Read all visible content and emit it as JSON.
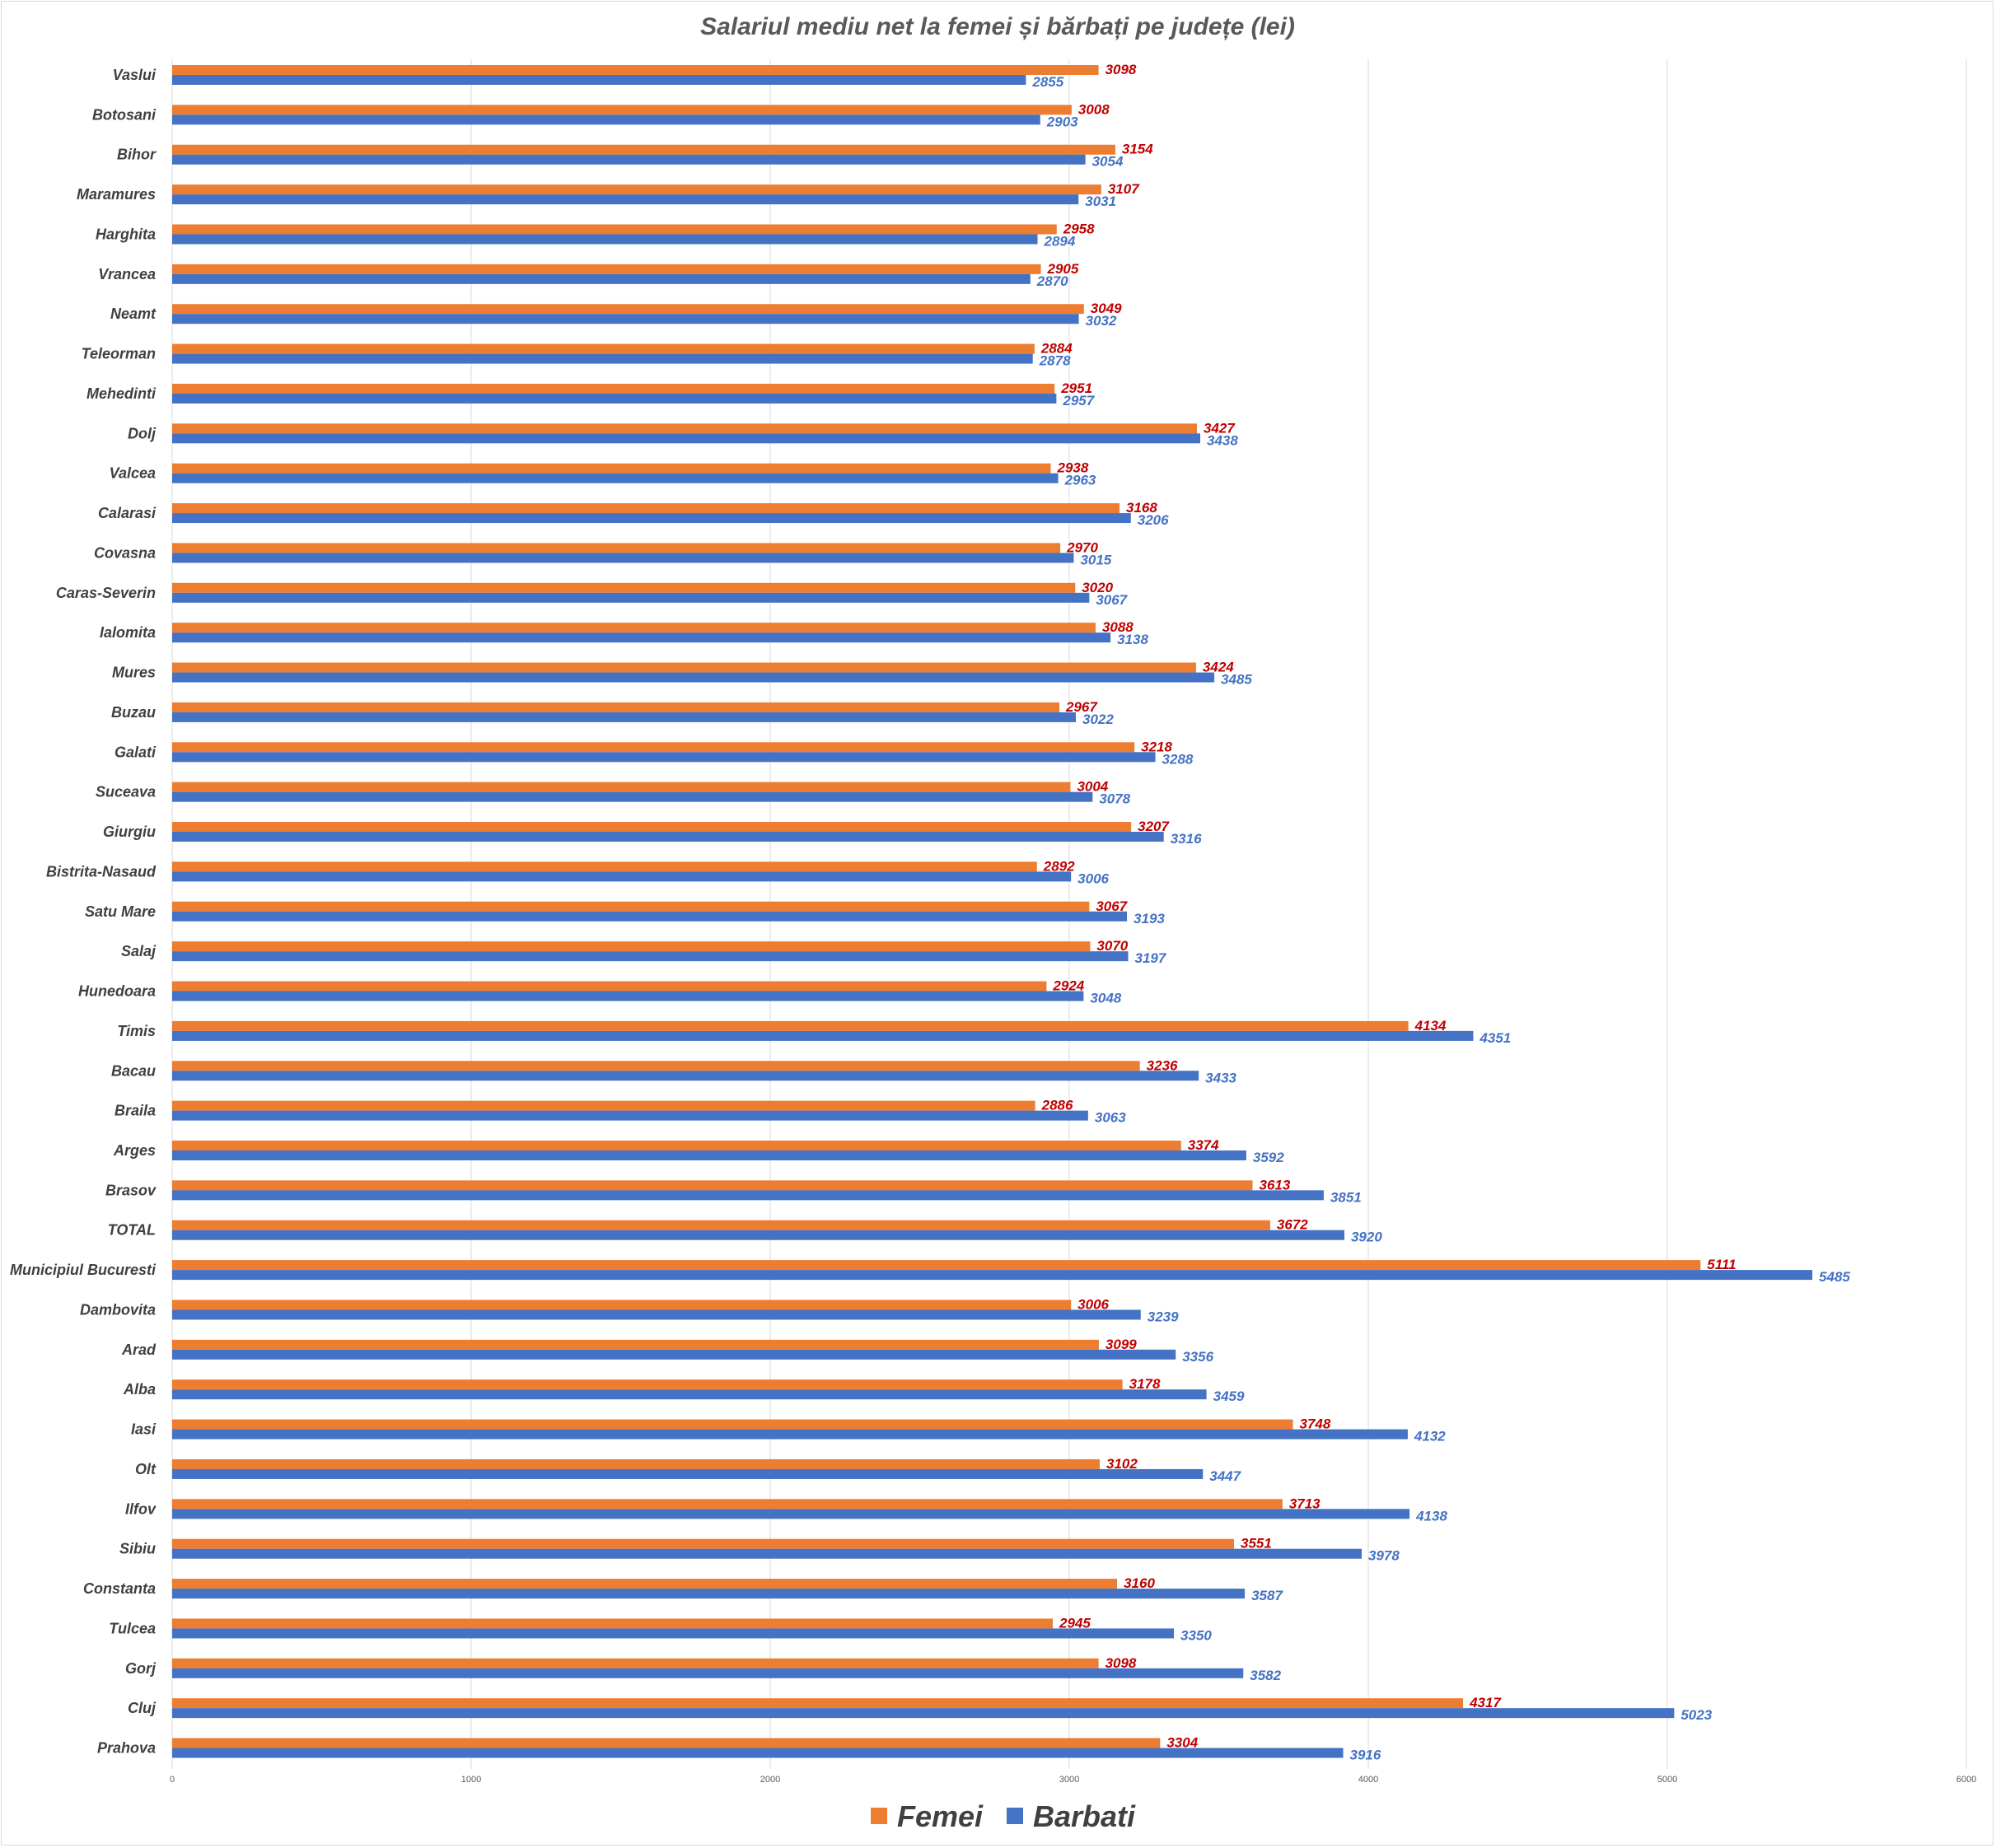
{
  "chart_data": {
    "type": "bar",
    "orientation": "horizontal",
    "title": "Salariul mediu net la femei și bărbați pe județe (lei)",
    "xlabel": "",
    "ylabel": "",
    "xlim": [
      0,
      6000
    ],
    "x_ticks": [
      "0",
      "1000",
      "2000",
      "3000",
      "4000",
      "5000",
      "6000"
    ],
    "grid": true,
    "legend_position": "bottom",
    "categories": [
      "Vaslui",
      "Botosani",
      "Bihor",
      "Maramures",
      "Harghita",
      "Vrancea",
      "Neamt",
      "Teleorman",
      "Mehedinti",
      "Dolj",
      "Valcea",
      "Calarasi",
      "Covasna",
      "Caras-Severin",
      "Ialomita",
      "Mures",
      "Buzau",
      "Galati",
      "Suceava",
      "Giurgiu",
      "Bistrita-Nasaud",
      "Satu Mare",
      "Salaj",
      "Hunedoara",
      "Timis",
      "Bacau",
      "Braila",
      "Arges",
      "Brasov",
      "TOTAL",
      "Municipiul Bucuresti",
      "Dambovita",
      "Arad",
      "Alba",
      "Iasi",
      "Olt",
      "Ilfov",
      "Sibiu",
      "Constanta",
      "Tulcea",
      "Gorj",
      "Cluj",
      "Prahova"
    ],
    "series": [
      {
        "name": "Femei",
        "color": "#ed7d31",
        "label_color": "#c00000",
        "values": [
          3098,
          3008,
          3154,
          3107,
          2958,
          2905,
          3049,
          2884,
          2951,
          3427,
          2938,
          3168,
          2970,
          3020,
          3088,
          3424,
          2967,
          3218,
          3004,
          3207,
          2892,
          3067,
          3070,
          2924,
          4134,
          3236,
          2886,
          3374,
          3613,
          3672,
          5111,
          3006,
          3099,
          3178,
          3748,
          3102,
          3713,
          3551,
          3160,
          2945,
          3098,
          4317,
          3304
        ]
      },
      {
        "name": "Barbati",
        "color": "#4472c4",
        "label_color": "#4472c4",
        "values": [
          2855,
          2903,
          3054,
          3031,
          2894,
          2870,
          3032,
          2878,
          2957,
          3438,
          2963,
          3206,
          3015,
          3067,
          3138,
          3485,
          3022,
          3288,
          3078,
          3316,
          3006,
          3193,
          3197,
          3048,
          4351,
          3433,
          3063,
          3592,
          3851,
          3920,
          5485,
          3239,
          3356,
          3459,
          4132,
          3447,
          4138,
          3978,
          3587,
          3350,
          3582,
          5023,
          3916
        ]
      }
    ]
  },
  "legend": {
    "femei_label": "Femei",
    "barbati_label": "Barbati",
    "femei_color": "#ed7d31",
    "barbati_color": "#4472c4"
  }
}
